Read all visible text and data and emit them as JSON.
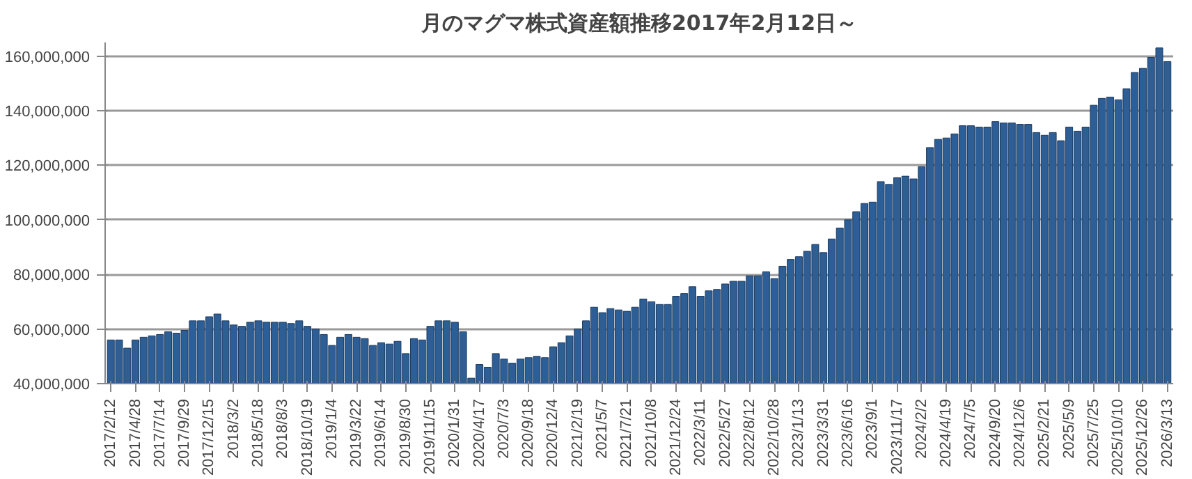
{
  "chart_data": {
    "type": "bar",
    "title": "月のマグマ株式資産額推移2017年2月12日～",
    "categories": [
      "2017/2/12",
      null,
      null,
      "2017/4/28",
      null,
      null,
      "2017/7/14",
      null,
      null,
      "2017/9/29",
      null,
      null,
      "2017/12/15",
      null,
      null,
      "2018/3/2",
      null,
      null,
      "2018/5/18",
      null,
      null,
      "2018/8/3",
      null,
      null,
      "2018/10/19",
      null,
      null,
      "2019/1/4",
      null,
      null,
      "2019/3/22",
      null,
      null,
      "2019/6/14",
      null,
      null,
      "2019/8/30",
      null,
      null,
      "2019/11/15",
      null,
      null,
      "2020/1/31",
      null,
      null,
      "2020/4/17",
      null,
      null,
      "2020/7/3",
      null,
      null,
      "2020/9/18",
      null,
      null,
      "2020/12/4",
      null,
      null,
      "2021/2/19",
      null,
      null,
      "2021/5/7",
      null,
      null,
      "2021/7/21",
      null,
      null,
      "2021/10/8",
      null,
      null,
      "2021/12/24",
      null,
      null,
      "2022/3/11",
      null,
      null,
      "2022/5/27",
      null,
      null,
      "2022/8/12",
      null,
      null,
      "2022/10/28",
      null,
      null,
      "2023/1/13",
      null,
      null,
      "2023/3/31",
      null,
      null,
      "2023/6/16",
      null,
      null,
      "2023/9/1",
      null,
      null,
      "2023/11/17",
      null,
      null,
      "2024/2/2",
      null,
      null,
      "2024/4/19",
      null,
      null,
      "2024/7/5",
      null,
      null,
      "2024/9/20",
      null,
      null,
      "2024/12/6",
      null,
      null,
      "2025/2/21",
      null,
      null,
      "2025/5/9",
      null,
      null,
      "2025/7/25",
      null,
      null,
      "2025/10/10",
      null,
      null,
      "2025/12/26",
      null,
      null,
      "2026/3/13"
    ],
    "values": [
      56000000,
      56000000,
      53000000,
      56000000,
      57000000,
      57500000,
      58000000,
      59000000,
      58500000,
      59500000,
      63000000,
      63000000,
      64500000,
      65500000,
      63000000,
      61500000,
      61000000,
      62500000,
      63000000,
      62500000,
      62500000,
      62500000,
      62000000,
      63000000,
      61000000,
      60000000,
      58000000,
      54000000,
      57000000,
      58000000,
      57000000,
      56500000,
      54000000,
      55000000,
      54500000,
      55500000,
      51000000,
      56500000,
      56000000,
      61000000,
      63000000,
      63000000,
      62500000,
      59000000,
      42000000,
      47000000,
      46000000,
      51000000,
      49000000,
      47500000,
      49000000,
      49500000,
      50000000,
      49500000,
      53500000,
      55000000,
      57500000,
      60000000,
      63000000,
      68000000,
      66000000,
      67500000,
      67000000,
      66500000,
      68000000,
      71000000,
      70000000,
      69000000,
      69000000,
      72000000,
      73000000,
      75500000,
      72000000,
      74000000,
      74500000,
      76500000,
      77500000,
      77500000,
      79500000,
      79500000,
      81000000,
      78500000,
      83000000,
      85500000,
      86500000,
      88500000,
      91000000,
      88000000,
      93000000,
      97000000,
      100000000,
      103000000,
      106000000,
      106500000,
      114000000,
      113000000,
      115500000,
      116000000,
      115000000,
      119500000,
      126500000,
      129500000,
      130000000,
      131500000,
      134500000,
      134500000,
      134000000,
      134000000,
      136000000,
      135500000,
      135500000,
      135000000,
      135000000,
      132000000,
      131000000,
      132000000,
      129000000,
      134000000,
      132500000,
      134000000,
      142000000,
      144500000,
      145000000,
      144000000,
      148000000,
      154000000,
      155500000,
      159500000,
      163000000,
      158000000
    ],
    "color": "#2e5e96",
    "ylim": [
      40000000,
      165000000
    ],
    "yticks": [
      {
        "value": 40000000,
        "label": "40,000,000"
      },
      {
        "value": 60000000,
        "label": "60,000,000"
      },
      {
        "value": 80000000,
        "label": "80,000,000"
      },
      {
        "value": 100000000,
        "label": "100,000,000"
      },
      {
        "value": 120000000,
        "label": "120,000,000"
      },
      {
        "value": 140000000,
        "label": "140,000,000"
      },
      {
        "value": 160000000,
        "label": "160,000,000"
      }
    ],
    "grid": "y"
  }
}
